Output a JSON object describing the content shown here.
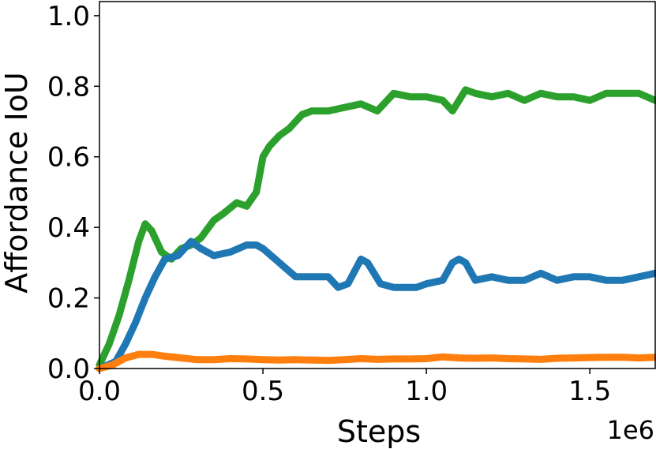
{
  "chart_data": {
    "type": "line",
    "title": "",
    "xlabel": "Steps",
    "ylabel": "Affordance IoU",
    "x_offset_label": "1e6",
    "xlim": [
      0,
      1.7
    ],
    "ylim": [
      0,
      1.04
    ],
    "grid": false,
    "legend": "none",
    "x_ticks": [
      {
        "value": 0.0,
        "label": "0.0"
      },
      {
        "value": 0.5,
        "label": "0.5"
      },
      {
        "value": 1.0,
        "label": "1.0"
      },
      {
        "value": 1.5,
        "label": "1.5"
      }
    ],
    "y_ticks": [
      {
        "value": 0.0,
        "label": "0.0"
      },
      {
        "value": 0.2,
        "label": "0.2"
      },
      {
        "value": 0.4,
        "label": "0.4"
      },
      {
        "value": 0.6,
        "label": "0.6"
      },
      {
        "value": 0.8,
        "label": "0.8"
      },
      {
        "value": 1.0,
        "label": "1.0"
      }
    ],
    "series": [
      {
        "color": "#2ca02c",
        "x": [
          0.0,
          0.03,
          0.06,
          0.09,
          0.12,
          0.14,
          0.16,
          0.19,
          0.22,
          0.25,
          0.28,
          0.31,
          0.35,
          0.38,
          0.42,
          0.45,
          0.48,
          0.5,
          0.52,
          0.55,
          0.58,
          0.6,
          0.62,
          0.65,
          0.7,
          0.75,
          0.8,
          0.85,
          0.9,
          0.95,
          1.0,
          1.05,
          1.08,
          1.12,
          1.15,
          1.2,
          1.25,
          1.3,
          1.35,
          1.4,
          1.45,
          1.5,
          1.55,
          1.6,
          1.65,
          1.7
        ],
        "y": [
          0.01,
          0.07,
          0.15,
          0.25,
          0.36,
          0.41,
          0.39,
          0.33,
          0.31,
          0.34,
          0.35,
          0.37,
          0.42,
          0.44,
          0.47,
          0.46,
          0.5,
          0.6,
          0.63,
          0.66,
          0.68,
          0.7,
          0.72,
          0.73,
          0.73,
          0.74,
          0.75,
          0.73,
          0.78,
          0.77,
          0.77,
          0.76,
          0.73,
          0.79,
          0.78,
          0.77,
          0.78,
          0.76,
          0.78,
          0.77,
          0.77,
          0.76,
          0.78,
          0.78,
          0.78,
          0.76
        ]
      },
      {
        "color": "#1f77b4",
        "x": [
          0.0,
          0.05,
          0.08,
          0.11,
          0.14,
          0.17,
          0.2,
          0.24,
          0.28,
          0.31,
          0.35,
          0.4,
          0.45,
          0.48,
          0.5,
          0.55,
          0.6,
          0.65,
          0.7,
          0.73,
          0.76,
          0.8,
          0.82,
          0.86,
          0.9,
          0.93,
          0.97,
          1.0,
          1.05,
          1.08,
          1.1,
          1.12,
          1.15,
          1.2,
          1.25,
          1.3,
          1.35,
          1.4,
          1.45,
          1.5,
          1.55,
          1.6,
          1.65,
          1.7
        ],
        "y": [
          0.0,
          0.02,
          0.07,
          0.13,
          0.2,
          0.26,
          0.31,
          0.32,
          0.36,
          0.34,
          0.32,
          0.33,
          0.35,
          0.35,
          0.34,
          0.3,
          0.26,
          0.26,
          0.26,
          0.23,
          0.24,
          0.31,
          0.3,
          0.24,
          0.23,
          0.23,
          0.23,
          0.24,
          0.25,
          0.3,
          0.31,
          0.3,
          0.25,
          0.26,
          0.25,
          0.25,
          0.27,
          0.25,
          0.26,
          0.26,
          0.25,
          0.25,
          0.26,
          0.27
        ]
      },
      {
        "color": "#ff7f0e",
        "x": [
          0.0,
          0.04,
          0.08,
          0.12,
          0.16,
          0.2,
          0.25,
          0.3,
          0.35,
          0.4,
          0.45,
          0.5,
          0.55,
          0.6,
          0.65,
          0.7,
          0.75,
          0.8,
          0.85,
          0.9,
          0.95,
          1.0,
          1.05,
          1.1,
          1.15,
          1.2,
          1.25,
          1.3,
          1.35,
          1.4,
          1.45,
          1.5,
          1.55,
          1.6,
          1.65,
          1.7
        ],
        "y": [
          0.0,
          0.01,
          0.03,
          0.04,
          0.04,
          0.035,
          0.03,
          0.025,
          0.025,
          0.028,
          0.027,
          0.025,
          0.024,
          0.025,
          0.024,
          0.023,
          0.025,
          0.028,
          0.026,
          0.027,
          0.027,
          0.028,
          0.033,
          0.03,
          0.029,
          0.03,
          0.028,
          0.027,
          0.026,
          0.029,
          0.03,
          0.031,
          0.032,
          0.032,
          0.03,
          0.032
        ]
      }
    ]
  }
}
